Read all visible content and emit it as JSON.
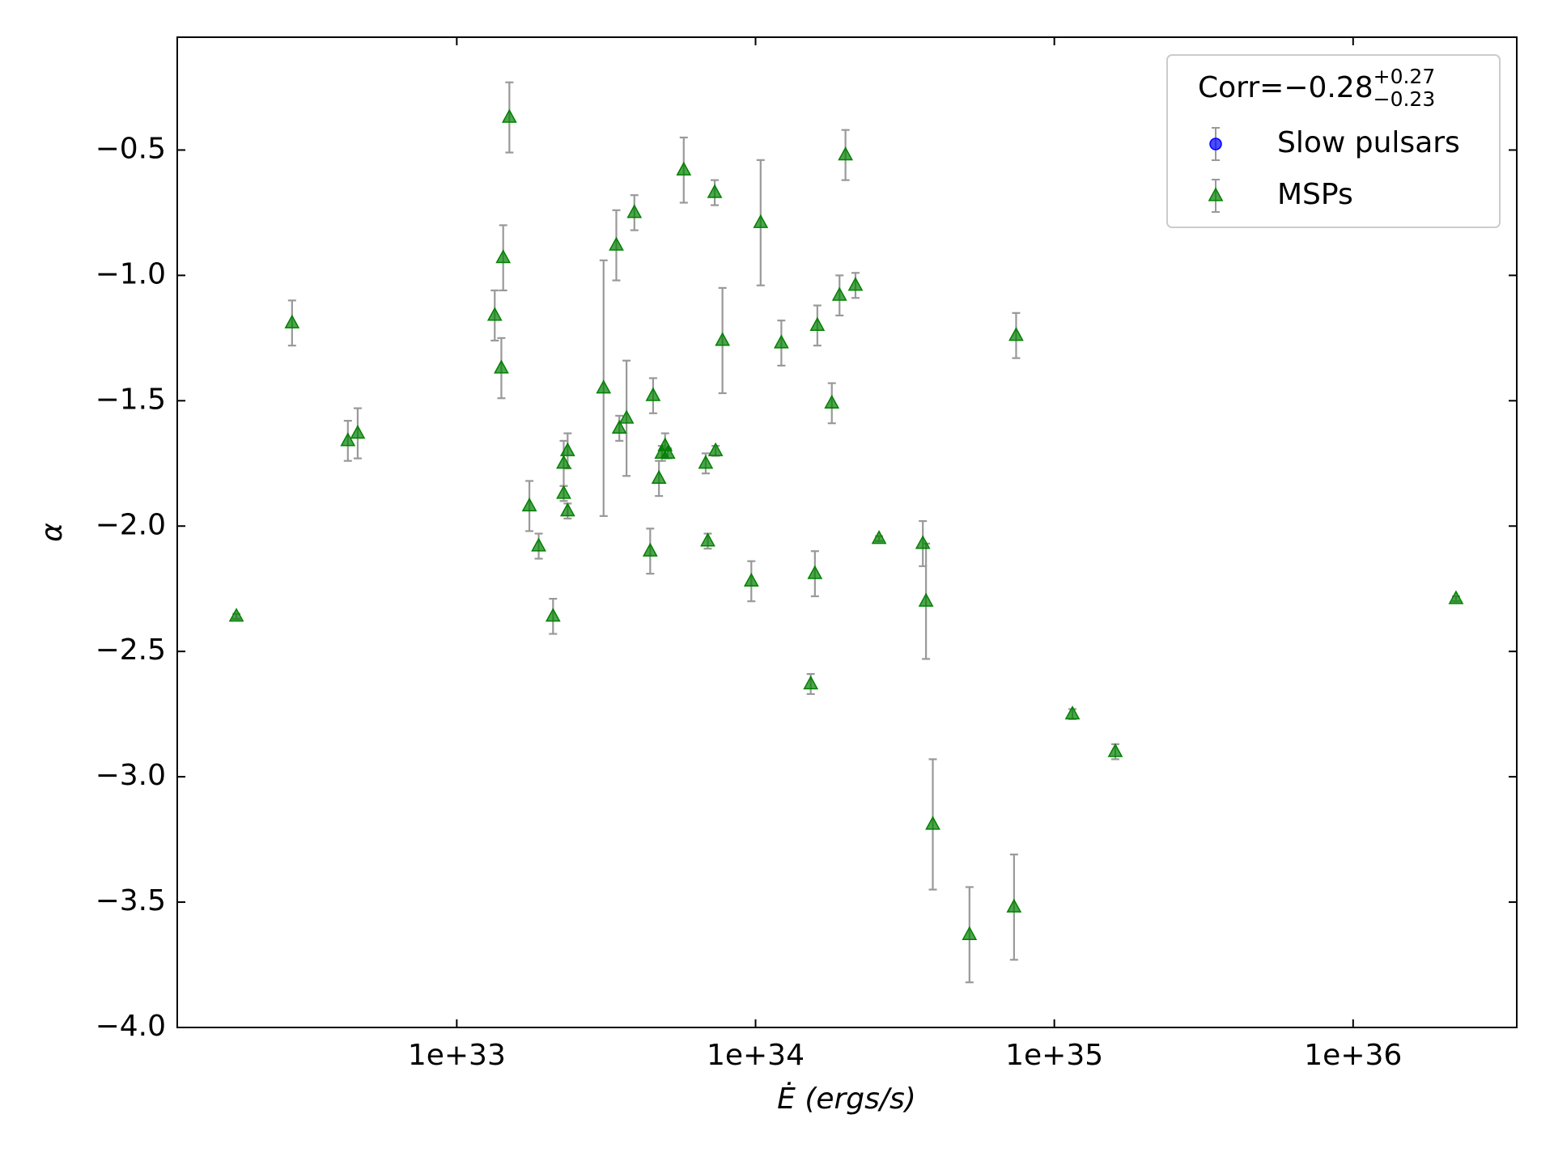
{
  "chart_data": {
    "type": "scatter",
    "xlabel": "Ė (ergs/s)",
    "ylabel": "α",
    "xscale": "log",
    "xlim": [
      1.16e+32,
      3.53e+36
    ],
    "ylim": [
      -4.0,
      -0.05
    ],
    "xticks": [
      {
        "value": 1e+33,
        "label": "1e+33"
      },
      {
        "value": 1e+34,
        "label": "1e+34"
      },
      {
        "value": 1e+35,
        "label": "1e+35"
      },
      {
        "value": 1e+36,
        "label": "1e+36"
      }
    ],
    "yticks": [
      {
        "value": -4.0,
        "label": "−4.0"
      },
      {
        "value": -3.5,
        "label": "−3.5"
      },
      {
        "value": -3.0,
        "label": "−3.0"
      },
      {
        "value": -2.5,
        "label": "−2.5"
      },
      {
        "value": -2.0,
        "label": "−2.0"
      },
      {
        "value": -1.5,
        "label": "−1.5"
      },
      {
        "value": -1.0,
        "label": "−1.0"
      },
      {
        "value": -0.5,
        "label": "−0.5"
      }
    ],
    "legend_title": {
      "text": "Corr=−0.28",
      "sup": "+0.27",
      "sub": "−0.23"
    },
    "legend_position": "upper right",
    "series": [
      {
        "name": "Slow pulsars",
        "color": "#0000ff",
        "marker": "circle",
        "x": [],
        "values": [],
        "errors": []
      },
      {
        "name": "MSPs",
        "color": "#008000",
        "marker": "triangle",
        "x": [
          1.83e+32,
          2.81e+32,
          4.32e+32,
          4.66e+32,
          1.34e+33,
          1.41e+33,
          1.43e+33,
          1.5e+33,
          1.75e+33,
          1.88e+33,
          2.1e+33,
          2.28e+33,
          2.28e+33,
          2.35e+33,
          2.35e+33,
          3.1e+33,
          3.42e+33,
          3.5e+33,
          3.7e+33,
          3.93e+33,
          4.44e+33,
          4.54e+33,
          4.75e+33,
          4.86e+33,
          4.98e+33,
          5.09e+33,
          5.75e+33,
          6.81e+33,
          6.92e+33,
          7.3e+33,
          7.35e+33,
          7.75e+33,
          9.68e+33,
          1.04e+34,
          1.22e+34,
          1.53e+34,
          1.58e+34,
          1.61e+34,
          1.8e+34,
          1.91e+34,
          2e+34,
          2.16e+34,
          2.59e+34,
          3.63e+34,
          3.72e+34,
          3.92e+34,
          5.2e+34,
          7.33e+34,
          7.45e+34,
          1.15e+35,
          1.6e+35,
          2.21e+36
        ],
        "values": [
          -2.36,
          -1.19,
          -1.66,
          -1.63,
          -1.16,
          -1.37,
          -0.93,
          -0.37,
          -1.92,
          -2.08,
          -2.36,
          -1.75,
          -1.87,
          -1.7,
          -1.94,
          -1.45,
          -0.88,
          -1.61,
          -1.57,
          -0.75,
          -2.1,
          -1.48,
          -1.81,
          -1.71,
          -1.68,
          -1.71,
          -0.58,
          -1.75,
          -2.06,
          -0.67,
          -1.7,
          -1.26,
          -2.22,
          -0.79,
          -1.27,
          -2.63,
          -2.19,
          -1.2,
          -1.51,
          -1.08,
          -0.52,
          -1.04,
          -2.05,
          -2.07,
          -2.3,
          -3.19,
          -3.63,
          -3.52,
          -1.24,
          -2.75,
          -2.9,
          -2.29
        ],
        "errors": [
          0.01,
          0.09,
          0.08,
          0.1,
          0.1,
          0.12,
          0.13,
          0.14,
          0.1,
          0.05,
          0.07,
          0.09,
          0.03,
          0.07,
          0.03,
          0.51,
          0.14,
          0.05,
          0.23,
          0.07,
          0.09,
          0.07,
          0.07,
          0.03,
          0.05,
          0.02,
          0.13,
          0.04,
          0.03,
          0.05,
          0.02,
          0.21,
          0.08,
          0.25,
          0.09,
          0.04,
          0.09,
          0.08,
          0.08,
          0.08,
          0.1,
          0.05,
          0.01,
          0.09,
          0.23,
          0.26,
          0.19,
          0.21,
          0.09,
          0.02,
          0.03,
          0.01
        ]
      }
    ]
  }
}
